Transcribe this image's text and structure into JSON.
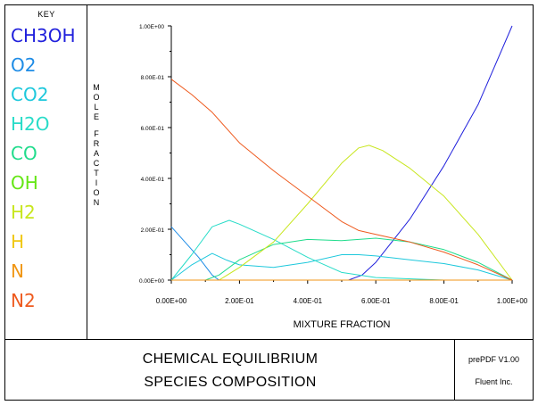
{
  "key": {
    "title": "KEY",
    "items": [
      {
        "label": "CH3OH",
        "color": "#2020dc"
      },
      {
        "label": "O2",
        "color": "#1e8ce6"
      },
      {
        "label": "CO2",
        "color": "#1ec8dc"
      },
      {
        "label": "H2O",
        "color": "#28dcc8"
      },
      {
        "label": "CO",
        "color": "#20dc8c"
      },
      {
        "label": "OH",
        "color": "#64e614"
      },
      {
        "label": "H2",
        "color": "#c8e61e"
      },
      {
        "label": "H",
        "color": "#f0c814"
      },
      {
        "label": "N",
        "color": "#f09614"
      },
      {
        "label": "N2",
        "color": "#ee5a1e"
      }
    ]
  },
  "title_block": {
    "line1": "CHEMICAL EQUILIBRIUM",
    "line2": "SPECIES COMPOSITION",
    "software": "prePDF V1.00",
    "company": "Fluent Inc."
  },
  "chart_data": {
    "type": "line",
    "xlabel": "MIXTURE FRACTION",
    "ylabel": "MOLE FRACTION",
    "xlim": [
      0,
      1
    ],
    "ylim": [
      0,
      1
    ],
    "x_ticks": [
      {
        "value": 0.0,
        "label": "0.00E+00"
      },
      {
        "value": 0.2,
        "label": "2.00E-01"
      },
      {
        "value": 0.4,
        "label": "4.00E-01"
      },
      {
        "value": 0.6,
        "label": "6.00E-01"
      },
      {
        "value": 0.8,
        "label": "8.00E-01"
      },
      {
        "value": 1.0,
        "label": "1.00E+00"
      }
    ],
    "y_ticks": [
      {
        "value": 0.0,
        "label": "0.00E+00"
      },
      {
        "value": 0.2,
        "label": "2.00E-01"
      },
      {
        "value": 0.4,
        "label": "4.00E-01"
      },
      {
        "value": 0.6,
        "label": "6.00E-01"
      },
      {
        "value": 0.8,
        "label": "8.00E-01"
      },
      {
        "value": 1.0,
        "label": "1.00E+00"
      }
    ],
    "grid": false,
    "series": [
      {
        "name": "CH3OH",
        "color": "#2020dc",
        "points": [
          [
            0,
            0
          ],
          [
            0.1,
            0
          ],
          [
            0.2,
            0
          ],
          [
            0.3,
            0
          ],
          [
            0.4,
            0
          ],
          [
            0.5,
            0
          ],
          [
            0.52,
            0
          ],
          [
            0.56,
            0.02
          ],
          [
            0.6,
            0.07
          ],
          [
            0.7,
            0.24
          ],
          [
            0.8,
            0.45
          ],
          [
            0.9,
            0.69
          ],
          [
            1.0,
            1.0
          ]
        ]
      },
      {
        "name": "O2",
        "color": "#1e8ce6",
        "points": [
          [
            0,
            0.21
          ],
          [
            0.04,
            0.15
          ],
          [
            0.08,
            0.09
          ],
          [
            0.12,
            0.02
          ],
          [
            0.14,
            0.0
          ],
          [
            0.3,
            0
          ],
          [
            0.6,
            0
          ],
          [
            1.0,
            0
          ]
        ]
      },
      {
        "name": "CO2",
        "color": "#1ec8dc",
        "points": [
          [
            0,
            0
          ],
          [
            0.06,
            0.06
          ],
          [
            0.12,
            0.105
          ],
          [
            0.16,
            0.08
          ],
          [
            0.2,
            0.06
          ],
          [
            0.3,
            0.05
          ],
          [
            0.4,
            0.07
          ],
          [
            0.5,
            0.1
          ],
          [
            0.55,
            0.1
          ],
          [
            0.6,
            0.095
          ],
          [
            0.7,
            0.08
          ],
          [
            0.8,
            0.065
          ],
          [
            0.9,
            0.04
          ],
          [
            1.0,
            0
          ]
        ]
      },
      {
        "name": "H2O",
        "color": "#28dcc8",
        "points": [
          [
            0,
            0
          ],
          [
            0.06,
            0.1
          ],
          [
            0.12,
            0.21
          ],
          [
            0.17,
            0.235
          ],
          [
            0.2,
            0.22
          ],
          [
            0.3,
            0.16
          ],
          [
            0.4,
            0.09
          ],
          [
            0.45,
            0.06
          ],
          [
            0.5,
            0.03
          ],
          [
            0.55,
            0.02
          ],
          [
            0.6,
            0.01
          ],
          [
            0.8,
            0
          ],
          [
            1.0,
            0
          ]
        ]
      },
      {
        "name": "CO",
        "color": "#20dc8c",
        "points": [
          [
            0,
            0
          ],
          [
            0.1,
            0
          ],
          [
            0.14,
            0.02
          ],
          [
            0.2,
            0.08
          ],
          [
            0.3,
            0.14
          ],
          [
            0.4,
            0.16
          ],
          [
            0.5,
            0.155
          ],
          [
            0.6,
            0.165
          ],
          [
            0.7,
            0.15
          ],
          [
            0.8,
            0.12
          ],
          [
            0.9,
            0.07
          ],
          [
            1.0,
            0
          ]
        ]
      },
      {
        "name": "OH",
        "color": "#64e614",
        "points": [
          [
            0,
            0
          ],
          [
            0.3,
            0
          ],
          [
            0.6,
            0
          ],
          [
            1.0,
            0
          ]
        ]
      },
      {
        "name": "H2",
        "color": "#c8e61e",
        "points": [
          [
            0,
            0
          ],
          [
            0.14,
            0
          ],
          [
            0.2,
            0.05
          ],
          [
            0.3,
            0.15
          ],
          [
            0.4,
            0.3
          ],
          [
            0.5,
            0.46
          ],
          [
            0.55,
            0.52
          ],
          [
            0.58,
            0.53
          ],
          [
            0.62,
            0.51
          ],
          [
            0.7,
            0.44
          ],
          [
            0.8,
            0.33
          ],
          [
            0.9,
            0.18
          ],
          [
            1.0,
            0
          ]
        ]
      },
      {
        "name": "H",
        "color": "#f0c814",
        "points": [
          [
            0,
            0
          ],
          [
            0.5,
            0
          ],
          [
            1.0,
            0
          ]
        ]
      },
      {
        "name": "N",
        "color": "#f09614",
        "points": [
          [
            0,
            0
          ],
          [
            0.5,
            0
          ],
          [
            1.0,
            0
          ]
        ]
      },
      {
        "name": "N2",
        "color": "#ee5a1e",
        "points": [
          [
            0,
            0.79
          ],
          [
            0.06,
            0.73
          ],
          [
            0.12,
            0.66
          ],
          [
            0.2,
            0.54
          ],
          [
            0.3,
            0.43
          ],
          [
            0.4,
            0.33
          ],
          [
            0.5,
            0.23
          ],
          [
            0.55,
            0.195
          ],
          [
            0.6,
            0.18
          ],
          [
            0.7,
            0.15
          ],
          [
            0.8,
            0.11
          ],
          [
            0.9,
            0.06
          ],
          [
            1.0,
            0
          ]
        ]
      }
    ]
  }
}
